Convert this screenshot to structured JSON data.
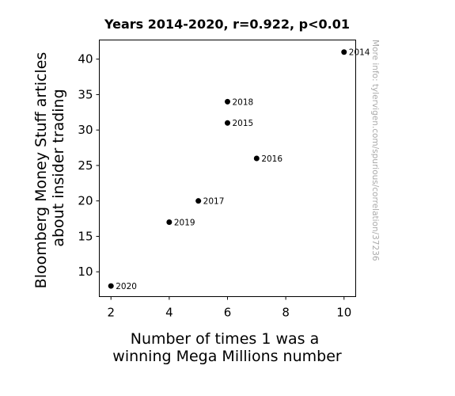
{
  "chart_data": {
    "type": "scatter",
    "title": "Years 2014-2020, r=0.922, p<0.01",
    "xlabel": [
      "Number of times 1 was a",
      "winning Mega Millions number"
    ],
    "ylabel": [
      "Bloomberg Money Stuff articles",
      "about insider trading"
    ],
    "xlim": [
      1.6,
      10.4
    ],
    "ylim": [
      6.5,
      42.7
    ],
    "xticks": [
      2,
      4,
      6,
      8,
      10
    ],
    "yticks": [
      10,
      15,
      20,
      25,
      30,
      35,
      40
    ],
    "grid": false,
    "points": [
      {
        "label": "2014",
        "x": 10,
        "y": 41
      },
      {
        "label": "2015",
        "x": 6,
        "y": 31
      },
      {
        "label": "2016",
        "x": 7,
        "y": 26
      },
      {
        "label": "2017",
        "x": 5,
        "y": 20
      },
      {
        "label": "2018",
        "x": 6,
        "y": 34
      },
      {
        "label": "2019",
        "x": 4,
        "y": 17
      },
      {
        "label": "2020",
        "x": 2,
        "y": 8
      }
    ],
    "point_color": "#000000",
    "watermark": "More info: tylervigen.com/spurious/correlation/37236"
  }
}
